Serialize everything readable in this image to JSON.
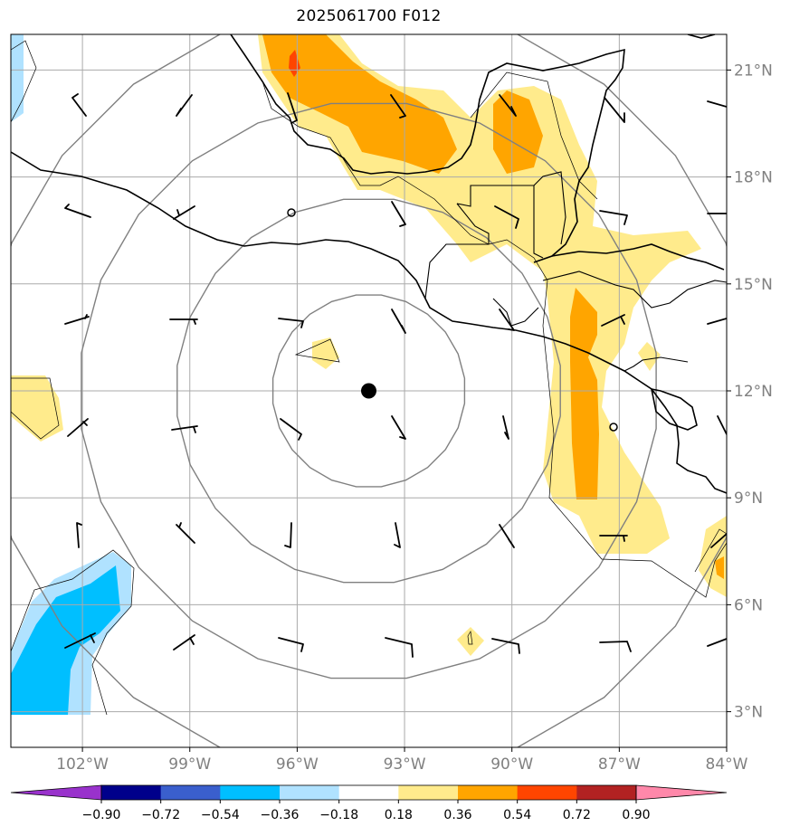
{
  "title": "2025061700 F012",
  "map": {
    "lon_range": [
      -104,
      -84
    ],
    "lat_range": [
      2,
      22
    ],
    "center_marker": {
      "lon": -94,
      "lat": 12
    },
    "lat_ticks": [
      {
        "value": 3,
        "label": "3°N"
      },
      {
        "value": 6,
        "label": "6°N"
      },
      {
        "value": 9,
        "label": "9°N"
      },
      {
        "value": 12,
        "label": "12°N"
      },
      {
        "value": 15,
        "label": "15°N"
      },
      {
        "value": 18,
        "label": "18°N"
      },
      {
        "value": 21,
        "label": "21°N"
      }
    ],
    "lon_ticks": [
      {
        "value": -102,
        "label": "102°W"
      },
      {
        "value": -99,
        "label": "99°W"
      },
      {
        "value": -96,
        "label": "96°W"
      },
      {
        "value": -93,
        "label": "93°W"
      },
      {
        "value": -90,
        "label": "90°W"
      },
      {
        "value": -87,
        "label": "87°W"
      },
      {
        "value": -84,
        "label": "84°W"
      }
    ],
    "range_rings_deg": [
      2.7,
      5.4,
      8.1,
      10.8
    ]
  },
  "colorbar": {
    "levels": [
      "−0.90",
      "−0.72",
      "−0.54",
      "−0.36",
      "−0.18",
      "0.18",
      "0.36",
      "0.54",
      "0.72",
      "0.90"
    ],
    "colors": [
      "#9932cc",
      "#00008b",
      "#3a5fcd",
      "#00bfff",
      "#b0e2ff",
      "#ffffff",
      "#ffeb8c",
      "#ffa500",
      "#ff4500",
      "#b22222",
      "#ff88aa"
    ]
  },
  "colors": {
    "grid": "#aaaaaa",
    "ring": "#808080",
    "coast": "#000000"
  }
}
